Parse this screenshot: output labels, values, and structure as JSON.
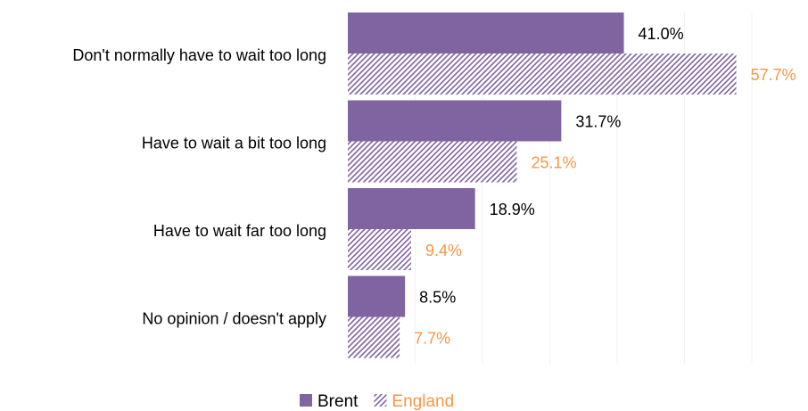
{
  "chart_data": {
    "type": "bar",
    "orientation": "horizontal",
    "categories": [
      "Don't normally have to wait too long",
      "Have to wait a bit too long",
      "Have to wait far too long",
      "No opinion / doesn't apply"
    ],
    "series": [
      {
        "name": "Brent",
        "values": [
          41.0,
          31.7,
          18.9,
          8.5
        ],
        "labels": [
          "41.0%",
          "31.7%",
          "18.9%",
          "8.5%"
        ],
        "color": "#8064A2",
        "label_color": "#000000",
        "fill": "solid"
      },
      {
        "name": "England",
        "values": [
          57.7,
          25.1,
          9.4,
          7.7
        ],
        "labels": [
          "57.7%",
          "25.1%",
          "9.4%",
          "7.7%"
        ],
        "color": "#8064A2",
        "label_color": "#F79646",
        "fill": "hatched"
      }
    ],
    "title": "",
    "xlabel": "",
    "ylabel": "",
    "xlim": [
      0,
      70
    ],
    "grid": true,
    "legend": "bottom-center"
  }
}
